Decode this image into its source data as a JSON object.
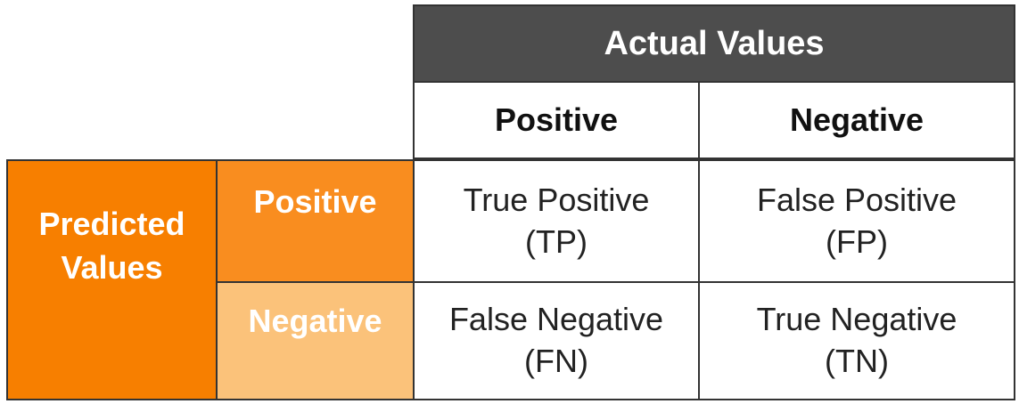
{
  "actual": {
    "title": "Actual Values",
    "columns": [
      "Positive",
      "Negative"
    ]
  },
  "predicted": {
    "title_line1": "Predicted",
    "title_line2": "Values",
    "rows": [
      "Positive",
      "Negative"
    ]
  },
  "matrix": [
    [
      {
        "label": "True Positive",
        "abbr": "(TP)"
      },
      {
        "label": "False Positive",
        "abbr": "(FP)"
      }
    ],
    [
      {
        "label": "False Negative",
        "abbr": "(FN)"
      },
      {
        "label": "True Negative",
        "abbr": "(TN)"
      }
    ]
  ],
  "colors": {
    "header_dark": "#4d4d4d",
    "predicted_orange": "#f77f00",
    "row_positive_orange": "#f98d1f",
    "row_negative_orange": "#fbc27a",
    "border": "#333333"
  }
}
